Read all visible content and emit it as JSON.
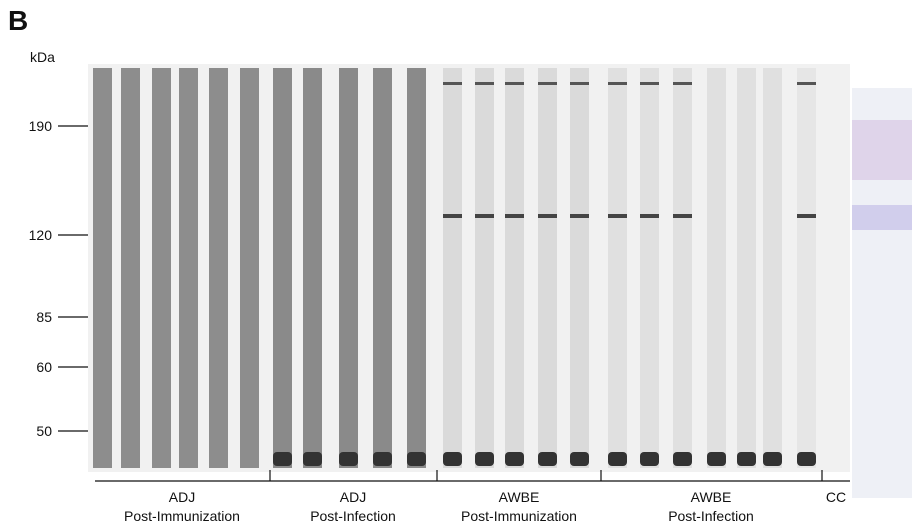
{
  "panel": "B",
  "unit": "kDa",
  "markers": [
    "190",
    "120",
    "85",
    "60",
    "50"
  ],
  "groups": [
    {
      "line1": "ADJ",
      "line2": "Post-Immunization"
    },
    {
      "line1": "ADJ",
      "line2": "Post-Infection"
    },
    {
      "line1": "AWBE",
      "line2": "Post-Immunization"
    },
    {
      "line1": "AWBE",
      "line2": "Post-Infection"
    },
    {
      "line1": "CC"
    }
  ]
}
